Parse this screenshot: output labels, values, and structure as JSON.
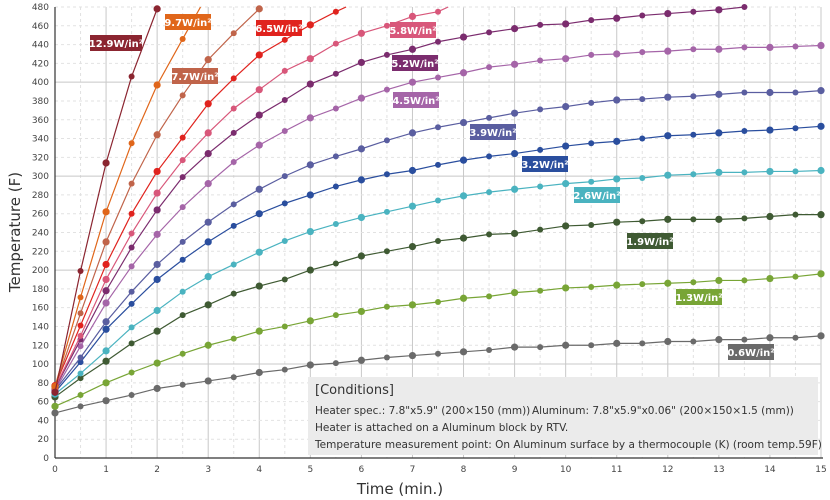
{
  "chart_data": {
    "type": "line",
    "title": "",
    "xlabel": "Time (min.)",
    "ylabel": "Temperature (F)",
    "xlim": [
      0,
      15
    ],
    "ylim": [
      0,
      480
    ],
    "x_ticks": [
      0,
      1,
      2,
      3,
      4,
      5,
      6,
      7,
      8,
      9,
      10,
      11,
      12,
      13,
      14,
      15
    ],
    "y_ticks": [
      0,
      20,
      40,
      60,
      80,
      100,
      120,
      140,
      160,
      180,
      200,
      220,
      240,
      260,
      280,
      300,
      320,
      340,
      360,
      380,
      400,
      420,
      440,
      460,
      480
    ],
    "grid": true,
    "x_step": 0.5,
    "series": [
      {
        "name": "12.9W/in²",
        "color": "#8b2530",
        "values": [
          70,
          199,
          314,
          406,
          478
        ]
      },
      {
        "name": "9.7W/in²",
        "color": "#e0661a",
        "values": [
          76,
          171,
          262,
          335,
          397,
          446
        ]
      },
      {
        "name": "7.7W/in²",
        "color": "#c0644a",
        "values": [
          76,
          154,
          230,
          292,
          344,
          386,
          424,
          452,
          478
        ]
      },
      {
        "name": "6.5W/in²",
        "color": "#e0231e",
        "values": [
          77,
          141,
          206,
          260,
          305,
          341,
          377,
          404,
          429,
          445,
          461,
          475
        ]
      },
      {
        "name": "5.8W/in²",
        "color": "#d8577a",
        "values": [
          75,
          130,
          190,
          239,
          282,
          317,
          346,
          372,
          392,
          412,
          425,
          441,
          452,
          460,
          470,
          475
        ]
      },
      {
        "name": "5.2W/in²",
        "color": "#7b2c6e",
        "values": [
          74,
          126,
          178,
          224,
          264,
          299,
          324,
          346,
          365,
          381,
          398,
          409,
          421,
          429,
          435,
          443,
          448,
          453,
          457,
          461,
          462,
          466,
          468,
          471,
          473,
          475,
          477,
          480
        ]
      },
      {
        "name": "4.5W/in²",
        "color": "#a565a8",
        "values": [
          72,
          119,
          165,
          204,
          238,
          267,
          292,
          315,
          333,
          348,
          362,
          372,
          383,
          392,
          400,
          405,
          410,
          416,
          419,
          423,
          425,
          429,
          430,
          432,
          433,
          435,
          435,
          437,
          437,
          438,
          439
        ]
      },
      {
        "name": "3.9W/in²",
        "color": "#5a5ea0",
        "values": [
          72,
          107,
          145,
          177,
          206,
          230,
          251,
          270,
          286,
          300,
          312,
          321,
          329,
          338,
          346,
          352,
          357,
          362,
          367,
          371,
          374,
          378,
          381,
          382,
          384,
          385,
          387,
          389,
          389,
          389,
          391
        ]
      },
      {
        "name": "3.2W/in²",
        "color": "#2a4e9e",
        "values": [
          70,
          102,
          137,
          164,
          190,
          211,
          230,
          247,
          260,
          271,
          280,
          289,
          296,
          302,
          306,
          312,
          317,
          321,
          324,
          328,
          332,
          335,
          337,
          340,
          343,
          344,
          346,
          348,
          349,
          351,
          353
        ]
      },
      {
        "name": "2.6W/in²",
        "color": "#4ab3c0",
        "values": [
          68,
          90,
          114,
          139,
          157,
          177,
          193,
          206,
          219,
          231,
          241,
          249,
          256,
          262,
          268,
          274,
          279,
          283,
          286,
          289,
          292,
          294,
          297,
          298,
          301,
          302,
          304,
          304,
          305,
          305,
          306
        ]
      },
      {
        "name": "1.9W/in²",
        "color": "#3f5a33",
        "values": [
          65,
          85,
          103,
          122,
          135,
          152,
          163,
          175,
          183,
          190,
          200,
          207,
          215,
          220,
          225,
          231,
          234,
          238,
          239,
          243,
          247,
          248,
          251,
          252,
          254,
          254,
          254,
          255,
          257,
          259,
          259
        ]
      },
      {
        "name": "1.3W/in²",
        "color": "#78a536",
        "values": [
          55,
          67,
          80,
          91,
          101,
          111,
          120,
          127,
          135,
          140,
          146,
          152,
          156,
          161,
          163,
          166,
          170,
          172,
          176,
          178,
          181,
          182,
          184,
          185,
          186,
          187,
          189,
          189,
          191,
          193,
          196
        ]
      },
      {
        "name": "0.6W/in²",
        "color": "#6a6a6a",
        "values": [
          48,
          55,
          61,
          67,
          74,
          78,
          82,
          86,
          91,
          94,
          99,
          101,
          104,
          107,
          109,
          111,
          113,
          115,
          118,
          118,
          120,
          120,
          122,
          122,
          124,
          124,
          126,
          126,
          128,
          128,
          130
        ]
      }
    ]
  },
  "conditions": {
    "heading": "[Conditions]",
    "heater_spec": "Heater spec.: 7.8\"x5.9\" (200×150 (mm))",
    "aluminum": "Aluminum: 7.8\"x5.9\"x0.06\" (200×150×1.5 (mm))",
    "attachment": "Heater is attached on a Aluminum block by RTV.",
    "measurement": "Temperature measurement point: On Aluminum surface by a thermocouple (K) (room temp.59F)"
  }
}
